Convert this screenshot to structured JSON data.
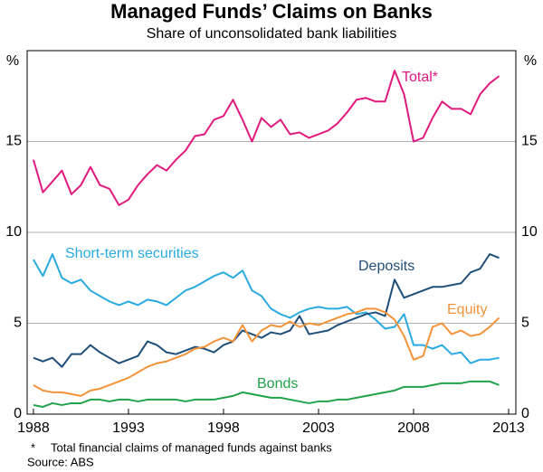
{
  "chart_data": {
    "type": "line",
    "title": "Managed Funds’ Claims on Banks",
    "subtitle": "Share of unconsolidated bank liabilities",
    "y_unit": "%",
    "footnote": "Total financial claims of managed funds against banks",
    "footnote_marker": "*",
    "source": "Source: ABS",
    "x": [
      1988,
      1988.5,
      1989,
      1989.5,
      1990,
      1990.5,
      1991,
      1991.5,
      1992,
      1992.5,
      1993,
      1993.5,
      1994,
      1994.5,
      1995,
      1995.5,
      1996,
      1996.5,
      1997,
      1997.5,
      1998,
      1998.5,
      1999,
      1999.5,
      2000,
      2000.5,
      2001,
      2001.5,
      2002,
      2002.5,
      2003,
      2003.5,
      2004,
      2004.5,
      2005,
      2005.5,
      2006,
      2006.5,
      2007,
      2007.5,
      2008,
      2008.5,
      2009,
      2009.5,
      2010,
      2010.5,
      2011,
      2011.5,
      2012,
      2012.5
    ],
    "series": [
      {
        "name": "Total*",
        "color": "#e0197f",
        "values": [
          14,
          12.2,
          12.8,
          13.4,
          12.1,
          12.6,
          13.6,
          12.6,
          12.4,
          11.5,
          11.8,
          12.6,
          13.2,
          13.7,
          13.4,
          14,
          14.5,
          15.3,
          15.4,
          16.2,
          16.4,
          17.3,
          16.2,
          15,
          16.3,
          15.8,
          16.2,
          15.4,
          15.5,
          15.2,
          15.4,
          15.6,
          16,
          16.6,
          17.3,
          17.4,
          17.2,
          17.2,
          18.9,
          17.6,
          15,
          15.2,
          16.3,
          17.2,
          16.8,
          16.8,
          16.5,
          17.6,
          18.2,
          18.6
        ]
      },
      {
        "name": "Short-term securities",
        "color": "#29aae1",
        "values": [
          8.5,
          7.6,
          8.8,
          7.5,
          7.2,
          7.4,
          6.8,
          6.5,
          6.2,
          6.0,
          6.2,
          6.0,
          6.3,
          6.2,
          6.0,
          6.4,
          6.8,
          7.0,
          7.3,
          7.6,
          7.8,
          7.5,
          7.9,
          6.8,
          6.5,
          5.8,
          5.5,
          5.3,
          5.6,
          5.8,
          5.9,
          5.8,
          5.8,
          5.9,
          5.5,
          5.6,
          5.2,
          4.7,
          4.8,
          5.5,
          3.8,
          3.8,
          3.6,
          3.8,
          3.3,
          3.4,
          2.8,
          3.0,
          3.0,
          3.1
        ]
      },
      {
        "name": "Deposits",
        "color": "#1f4e79",
        "values": [
          3.1,
          2.9,
          3.1,
          2.6,
          3.3,
          3.3,
          3.8,
          3.4,
          3.1,
          2.8,
          3.0,
          3.2,
          4.0,
          3.8,
          3.4,
          3.3,
          3.5,
          3.7,
          3.6,
          3.4,
          3.8,
          4.0,
          4.6,
          4.4,
          4.2,
          4.5,
          4.4,
          4.6,
          5.4,
          4.4,
          4.5,
          4.6,
          4.9,
          5.1,
          5.3,
          5.5,
          5.6,
          5.4,
          7.4,
          6.4,
          6.6,
          6.8,
          7.0,
          7.0,
          7.1,
          7.2,
          7.8,
          8.0,
          8.8,
          8.6
        ]
      },
      {
        "name": "Equity",
        "color": "#f3933a",
        "values": [
          1.6,
          1.3,
          1.2,
          1.2,
          1.1,
          1.0,
          1.3,
          1.4,
          1.6,
          1.8,
          2.0,
          2.3,
          2.6,
          2.8,
          2.9,
          3.1,
          3.3,
          3.6,
          3.7,
          4.0,
          4.2,
          4.0,
          4.9,
          4.0,
          4.6,
          4.9,
          4.8,
          5.1,
          4.8,
          5.0,
          4.9,
          5.1,
          5.3,
          5.5,
          5.6,
          5.8,
          5.8,
          5.6,
          5.2,
          4.3,
          3.0,
          3.2,
          4.8,
          5.0,
          4.4,
          4.6,
          4.3,
          4.4,
          4.8,
          5.3
        ]
      },
      {
        "name": "Bonds",
        "color": "#21a24a",
        "values": [
          0.5,
          0.4,
          0.6,
          0.5,
          0.6,
          0.6,
          0.8,
          0.8,
          0.7,
          0.8,
          0.8,
          0.7,
          0.8,
          0.8,
          0.8,
          0.8,
          0.7,
          0.8,
          0.8,
          0.8,
          0.9,
          1.0,
          1.2,
          1.1,
          1.0,
          0.9,
          0.9,
          0.8,
          0.7,
          0.6,
          0.7,
          0.7,
          0.8,
          0.8,
          0.9,
          1.0,
          1.1,
          1.2,
          1.3,
          1.5,
          1.5,
          1.5,
          1.6,
          1.7,
          1.7,
          1.7,
          1.8,
          1.8,
          1.8,
          1.6
        ]
      }
    ],
    "xlim": [
      1987.67,
      2013.38
    ],
    "xticks": [
      1988,
      1993,
      1998,
      2003,
      2008,
      2013
    ],
    "ylim": [
      0,
      20
    ],
    "yticks": [
      0,
      5,
      10,
      15
    ],
    "grid": true
  }
}
